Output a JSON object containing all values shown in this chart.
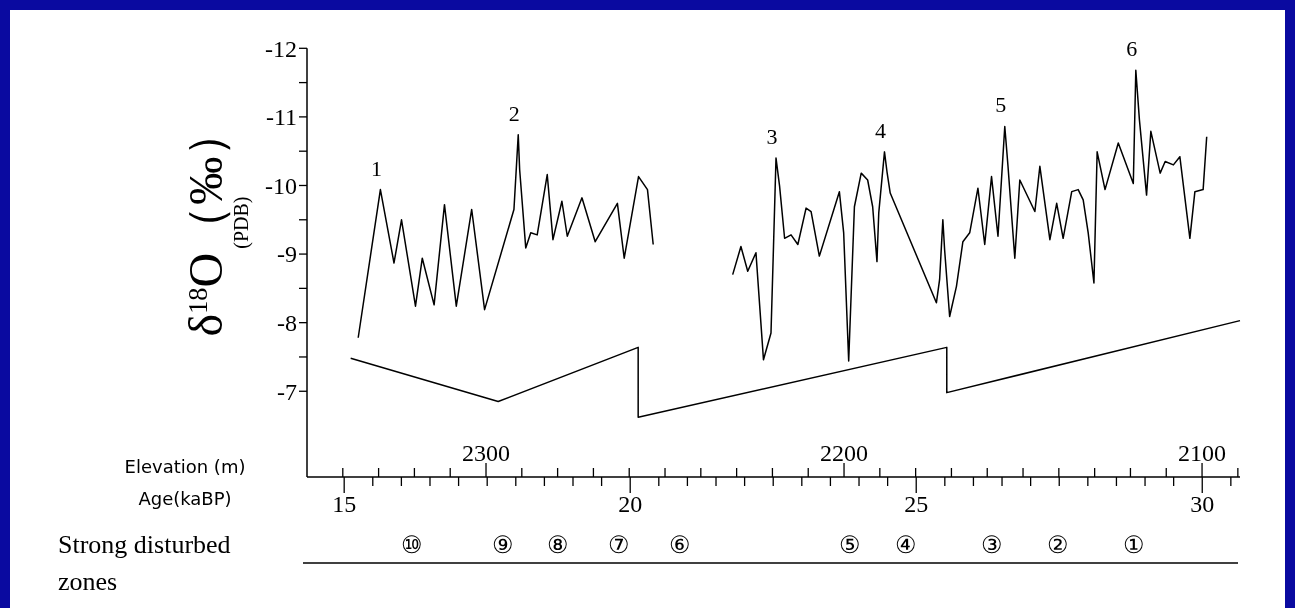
{
  "chart_data": {
    "type": "line",
    "xlabel": "Elevation (m)",
    "x2label": "Age(kaBP)",
    "ylabel": "δ$^{18}$O（‰）\n(PDB)",
    "xlim": [
      2350,
      2089.4
    ],
    "xticks": [
      {
        "value": 2340,
        "label": null
      },
      {
        "value": 2330,
        "label": null
      },
      {
        "value": 2320,
        "label": null
      },
      {
        "value": 2310,
        "label": null
      },
      2300,
      {
        "value": 2290,
        "label": null
      },
      {
        "value": 2280,
        "label": null
      },
      {
        "value": 2270,
        "label": null
      },
      {
        "value": 2260,
        "label": null
      },
      {
        "value": 2250,
        "label": null
      },
      {
        "value": 2240,
        "label": null
      },
      {
        "value": 2230,
        "label": null
      },
      {
        "value": 2220,
        "label": null
      },
      {
        "value": 2210,
        "label": null
      },
      2200,
      {
        "value": 2190,
        "label": null
      },
      {
        "value": 2180,
        "label": null
      },
      {
        "value": 2170,
        "label": null
      },
      {
        "value": 2160,
        "label": null
      },
      {
        "value": 2150,
        "label": null
      },
      {
        "value": 2140,
        "label": null
      },
      {
        "value": 2130,
        "label": null
      },
      {
        "value": 2120,
        "label": null
      },
      {
        "value": 2110,
        "label": null
      },
      2100,
      {
        "value": 2090,
        "label": null
      }
    ],
    "x2lim": [
      14.35,
      30.66
    ],
    "x2ticks": [
      15,
      {
        "value": 15.5,
        "label": null
      },
      {
        "value": 16,
        "label": null
      },
      {
        "value": 16.5,
        "label": null
      },
      {
        "value": 17,
        "label": null
      },
      {
        "value": 17.5,
        "label": null
      },
      {
        "value": 18,
        "label": null
      },
      {
        "value": 18.5,
        "label": null
      },
      {
        "value": 19,
        "label": null
      },
      {
        "value": 19.5,
        "label": null
      },
      20,
      {
        "value": 20.5,
        "label": null
      },
      {
        "value": 21,
        "label": null
      },
      {
        "value": 21.5,
        "label": null
      },
      {
        "value": 22,
        "label": null
      },
      {
        "value": 22.5,
        "label": null
      },
      {
        "value": 23,
        "label": null
      },
      {
        "value": 23.5,
        "label": null
      },
      {
        "value": 24,
        "label": null
      },
      {
        "value": 24.5,
        "label": null
      },
      25,
      {
        "value": 25.5,
        "label": null
      },
      {
        "value": 26,
        "label": null
      },
      {
        "value": 26.5,
        "label": null
      },
      {
        "value": 27,
        "label": null
      },
      {
        "value": 27.5,
        "label": null
      },
      {
        "value": 28,
        "label": null
      },
      {
        "value": 28.5,
        "label": null
      },
      {
        "value": 29,
        "label": null
      },
      {
        "value": 29.5,
        "label": null
      },
      30,
      {
        "value": 30.5,
        "label": null
      }
    ],
    "ylim": [
      -5.75,
      -12
    ],
    "yticks": [
      -12,
      {
        "value": -11.5,
        "label": null
      },
      -11,
      {
        "value": -10.5,
        "label": null
      },
      -10,
      {
        "value": -9.5,
        "label": null
      },
      -9,
      {
        "value": -8.5,
        "label": null
      },
      -8,
      {
        "value": -7.5,
        "label": null
      },
      -7
    ],
    "series": [
      {
        "color": "#000000",
        "x": [
          2335.7,
          2329.5,
          2325.7,
          2323.6,
          2319.7,
          2317.8,
          2314.5,
          2311.6,
          2308.3,
          2304.0,
          2300.4,
          2292.2,
          2291.0,
          2290.6,
          2288.9,
          2287.5,
          2285.7,
          2282.9,
          2281.3,
          2278.8,
          2277.3,
          2273.2,
          2269.5,
          2263.3,
          2261.4,
          2257.4,
          2254.9,
          2253.3
        ],
        "values": [
          -7.78,
          -9.94,
          -8.87,
          -9.5,
          -8.24,
          -8.94,
          -8.26,
          -9.72,
          -8.24,
          -9.65,
          -8.19,
          -9.65,
          -10.74,
          -10.23,
          -9.09,
          -9.31,
          -9.28,
          -10.16,
          -9.21,
          -9.77,
          -9.26,
          -9.82,
          -9.18,
          -9.74,
          -8.94,
          -10.13,
          -9.94,
          -9.14
        ]
      },
      {
        "color": "#000000",
        "x": [
          2231.1,
          2228.8,
          2226.9,
          2224.6,
          2222.5,
          2220.4,
          2219.7,
          2219.0,
          2218.0,
          2216.6,
          2214.8,
          2212.9,
          2210.6,
          2209.2,
          2206.9,
          2201.3,
          2200.1,
          2198.7,
          2197.1,
          2195.2,
          2193.4,
          2192.0,
          2190.8,
          2190.3,
          2188.7,
          2188.0,
          2187.1,
          2174.2,
          2173.3,
          2172.4,
          2171.9,
          2170.5,
          2168.6,
          2166.8,
          2164.9,
          2162.6,
          2160.7,
          2158.8,
          2157.0,
          2155.1,
          2154.2,
          2152.3,
          2150.9,
          2146.7,
          2145.3,
          2142.5,
          2140.6,
          2138.8,
          2136.4,
          2134.6,
          2133.2,
          2131.8,
          2130.2,
          2129.3,
          2127.1,
          2123.4,
          2119.2,
          2118.5,
          2117.5,
          2115.5,
          2114.3,
          2111.7,
          2110.3,
          2108.0,
          2106.2,
          2103.4,
          2102.0,
          2099.7,
          2098.7
        ],
        "values": [
          -8.7,
          -9.11,
          -8.75,
          -9.02,
          -7.46,
          -7.85,
          -9.11,
          -10.4,
          -9.99,
          -9.23,
          -9.28,
          -9.14,
          -9.67,
          -9.62,
          -8.97,
          -9.91,
          -9.31,
          -7.44,
          -9.69,
          -10.18,
          -10.08,
          -9.69,
          -8.89,
          -9.6,
          -10.49,
          -10.2,
          -9.89,
          -8.29,
          -8.63,
          -9.5,
          -9.06,
          -8.09,
          -8.53,
          -9.18,
          -9.31,
          -9.96,
          -9.14,
          -10.13,
          -9.26,
          -10.86,
          -10.28,
          -8.94,
          -10.08,
          -9.62,
          -10.28,
          -9.21,
          -9.74,
          -9.23,
          -9.91,
          -9.94,
          -9.79,
          -9.31,
          -8.58,
          -10.49,
          -9.94,
          -10.62,
          -10.03,
          -11.68,
          -10.96,
          -9.86,
          -10.79,
          -10.18,
          -10.35,
          -10.3,
          -10.42,
          -9.23,
          -9.91,
          -9.94,
          -10.71
        ]
      },
      {
        "color": "#000000",
        "x": [
          2337.8,
          2296.6,
          2257.5,
          2257.5,
          2171.3,
          2171.3,
          2089.4
        ],
        "values": [
          -7.48,
          -6.85,
          -7.64,
          -6.62,
          -7.64,
          -6.98,
          -8.03
        ]
      }
    ],
    "annotations": [
      {
        "text": "1",
        "x": 2329.5,
        "y": -9.94
      },
      {
        "text": "2",
        "x": 2291.0,
        "y": -10.74
      },
      {
        "text": "3",
        "x": 2219.0,
        "y": -10.4
      },
      {
        "text": "4",
        "x": 2188.7,
        "y": -10.49
      },
      {
        "text": "5",
        "x": 2155.1,
        "y": -10.86
      },
      {
        "text": "6",
        "x": 2118.5,
        "y": -11.68
      },
      "Strong disturbed zones",
      "⑩",
      "⑨",
      "⑧",
      "⑦",
      "⑥",
      "⑤",
      "④",
      "③",
      "②",
      "①"
    ]
  }
}
